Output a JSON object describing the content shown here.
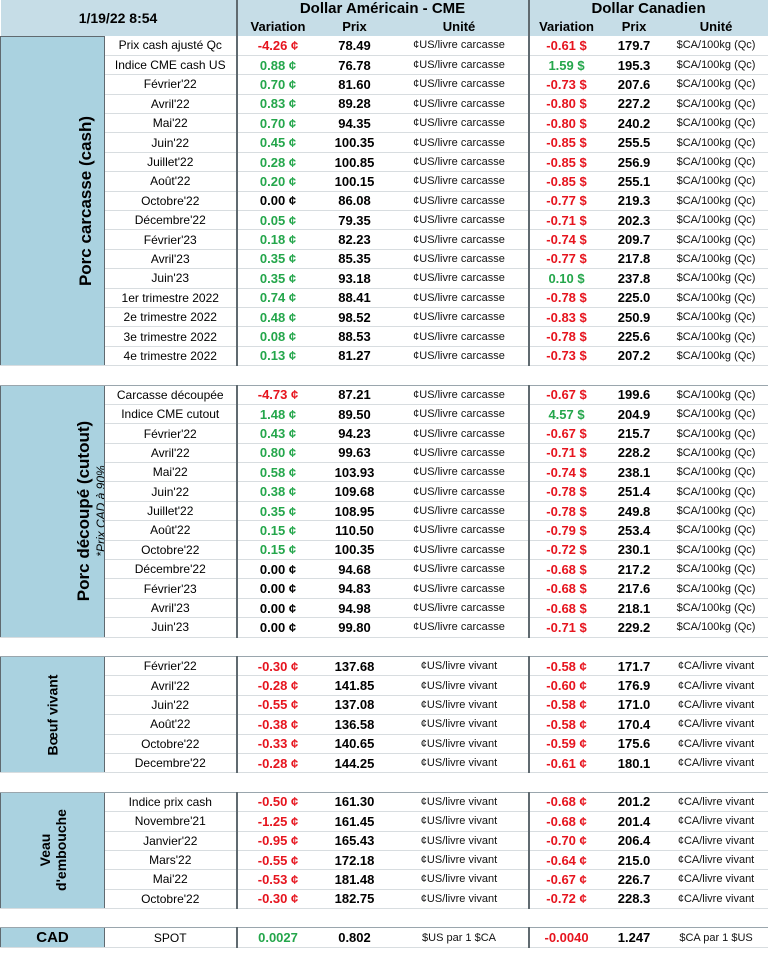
{
  "header": {
    "date": "1/19/22 8:54",
    "usd_title": "Dollar Américain - CME",
    "cad_title": "Dollar Canadien",
    "col_variation": "Variation",
    "col_prix": "Prix",
    "col_unite": "Unité"
  },
  "colors": {
    "negative": "#e6141e",
    "positive": "#24a64b",
    "side_bg": "#aad2e0",
    "header_bg": "#c6dde7"
  },
  "sections": [
    {
      "id": "porc-carcasse",
      "label": "Porc carcasse (cash)",
      "note": "",
      "rows": [
        {
          "label": "Prix cash ajusté Qc",
          "usd_var": "-4.26 ¢",
          "usd_price": "78.49",
          "usd_unit": "¢US/livre carcasse",
          "cad_var": "-0.61 $",
          "cad_price": "179.7",
          "cad_unit": "$CA/100kg (Qc)"
        },
        {
          "label": "Indice CME cash US",
          "usd_var": "0.88 ¢",
          "usd_price": "76.78",
          "usd_unit": "¢US/livre carcasse",
          "cad_var": "1.59 $",
          "cad_price": "195.3",
          "cad_unit": "$CA/100kg (Qc)"
        },
        {
          "label": "Février'22",
          "usd_var": "0.70 ¢",
          "usd_price": "81.60",
          "usd_unit": "¢US/livre carcasse",
          "cad_var": "-0.73 $",
          "cad_price": "207.6",
          "cad_unit": "$CA/100kg (Qc)"
        },
        {
          "label": "Avril'22",
          "usd_var": "0.83 ¢",
          "usd_price": "89.28",
          "usd_unit": "¢US/livre carcasse",
          "cad_var": "-0.80 $",
          "cad_price": "227.2",
          "cad_unit": "$CA/100kg (Qc)"
        },
        {
          "label": "Mai'22",
          "usd_var": "0.70 ¢",
          "usd_price": "94.35",
          "usd_unit": "¢US/livre carcasse",
          "cad_var": "-0.80 $",
          "cad_price": "240.2",
          "cad_unit": "$CA/100kg (Qc)"
        },
        {
          "label": "Juin'22",
          "usd_var": "0.45 ¢",
          "usd_price": "100.35",
          "usd_unit": "¢US/livre carcasse",
          "cad_var": "-0.85 $",
          "cad_price": "255.5",
          "cad_unit": "$CA/100kg (Qc)"
        },
        {
          "label": "Juillet'22",
          "usd_var": "0.28 ¢",
          "usd_price": "100.85",
          "usd_unit": "¢US/livre carcasse",
          "cad_var": "-0.85 $",
          "cad_price": "256.9",
          "cad_unit": "$CA/100kg (Qc)"
        },
        {
          "label": "Août'22",
          "usd_var": "0.20 ¢",
          "usd_price": "100.15",
          "usd_unit": "¢US/livre carcasse",
          "cad_var": "-0.85 $",
          "cad_price": "255.1",
          "cad_unit": "$CA/100kg (Qc)"
        },
        {
          "label": "Octobre'22",
          "usd_var": "0.00 ¢",
          "usd_price": "86.08",
          "usd_unit": "¢US/livre carcasse",
          "cad_var": "-0.77 $",
          "cad_price": "219.3",
          "cad_unit": "$CA/100kg (Qc)"
        },
        {
          "label": "Décembre'22",
          "usd_var": "0.05 ¢",
          "usd_price": "79.35",
          "usd_unit": "¢US/livre carcasse",
          "cad_var": "-0.71 $",
          "cad_price": "202.3",
          "cad_unit": "$CA/100kg (Qc)"
        },
        {
          "label": "Février'23",
          "usd_var": "0.18 ¢",
          "usd_price": "82.23",
          "usd_unit": "¢US/livre carcasse",
          "cad_var": "-0.74 $",
          "cad_price": "209.7",
          "cad_unit": "$CA/100kg (Qc)"
        },
        {
          "label": "Avril'23",
          "usd_var": "0.35 ¢",
          "usd_price": "85.35",
          "usd_unit": "¢US/livre carcasse",
          "cad_var": "-0.77 $",
          "cad_price": "217.8",
          "cad_unit": "$CA/100kg (Qc)"
        },
        {
          "label": "Juin'23",
          "usd_var": "0.35 ¢",
          "usd_price": "93.18",
          "usd_unit": "¢US/livre carcasse",
          "cad_var": "0.10 $",
          "cad_price": "237.8",
          "cad_unit": "$CA/100kg (Qc)"
        },
        {
          "label": "1er trimestre 2022",
          "usd_var": "0.74 ¢",
          "usd_price": "88.41",
          "usd_unit": "¢US/livre carcasse",
          "cad_var": "-0.78 $",
          "cad_price": "225.0",
          "cad_unit": "$CA/100kg (Qc)"
        },
        {
          "label": "2e trimestre 2022",
          "usd_var": "0.48 ¢",
          "usd_price": "98.52",
          "usd_unit": "¢US/livre carcasse",
          "cad_var": "-0.83 $",
          "cad_price": "250.9",
          "cad_unit": "$CA/100kg (Qc)"
        },
        {
          "label": "3e trimestre 2022",
          "usd_var": "0.08 ¢",
          "usd_price": "88.53",
          "usd_unit": "¢US/livre carcasse",
          "cad_var": "-0.78 $",
          "cad_price": "225.6",
          "cad_unit": "$CA/100kg (Qc)"
        },
        {
          "label": "4e trimestre 2022",
          "usd_var": "0.13 ¢",
          "usd_price": "81.27",
          "usd_unit": "¢US/livre carcasse",
          "cad_var": "-0.73 $",
          "cad_price": "207.2",
          "cad_unit": "$CA/100kg (Qc)"
        }
      ]
    },
    {
      "id": "porc-decoupe",
      "label": "Porc découpé (cutout)",
      "note": "*Prix CAD à 90%",
      "rows": [
        {
          "label": "Carcasse découpée",
          "usd_var": "-4.73 ¢",
          "usd_price": "87.21",
          "usd_unit": "¢US/livre carcasse",
          "cad_var": "-0.67 $",
          "cad_price": "199.6",
          "cad_unit": "$CA/100kg (Qc)"
        },
        {
          "label": "Indice CME cutout",
          "usd_var": "1.48 ¢",
          "usd_price": "89.50",
          "usd_unit": "¢US/livre carcasse",
          "cad_var": "4.57 $",
          "cad_price": "204.9",
          "cad_unit": "$CA/100kg (Qc)"
        },
        {
          "label": "Février'22",
          "usd_var": "0.43 ¢",
          "usd_price": "94.23",
          "usd_unit": "¢US/livre carcasse",
          "cad_var": "-0.67 $",
          "cad_price": "215.7",
          "cad_unit": "$CA/100kg (Qc)"
        },
        {
          "label": "Avril'22",
          "usd_var": "0.80 ¢",
          "usd_price": "99.63",
          "usd_unit": "¢US/livre carcasse",
          "cad_var": "-0.71 $",
          "cad_price": "228.2",
          "cad_unit": "$CA/100kg (Qc)"
        },
        {
          "label": "Mai'22",
          "usd_var": "0.58 ¢",
          "usd_price": "103.93",
          "usd_unit": "¢US/livre carcasse",
          "cad_var": "-0.74 $",
          "cad_price": "238.1",
          "cad_unit": "$CA/100kg (Qc)"
        },
        {
          "label": "Juin'22",
          "usd_var": "0.38 ¢",
          "usd_price": "109.68",
          "usd_unit": "¢US/livre carcasse",
          "cad_var": "-0.78 $",
          "cad_price": "251.4",
          "cad_unit": "$CA/100kg (Qc)"
        },
        {
          "label": "Juillet'22",
          "usd_var": "0.35 ¢",
          "usd_price": "108.95",
          "usd_unit": "¢US/livre carcasse",
          "cad_var": "-0.78 $",
          "cad_price": "249.8",
          "cad_unit": "$CA/100kg (Qc)"
        },
        {
          "label": "Août'22",
          "usd_var": "0.15 ¢",
          "usd_price": "110.50",
          "usd_unit": "¢US/livre carcasse",
          "cad_var": "-0.79 $",
          "cad_price": "253.4",
          "cad_unit": "$CA/100kg (Qc)"
        },
        {
          "label": "Octobre'22",
          "usd_var": "0.15 ¢",
          "usd_price": "100.35",
          "usd_unit": "¢US/livre carcasse",
          "cad_var": "-0.72 $",
          "cad_price": "230.1",
          "cad_unit": "$CA/100kg (Qc)"
        },
        {
          "label": "Décembre'22",
          "usd_var": "0.00 ¢",
          "usd_price": "94.68",
          "usd_unit": "¢US/livre carcasse",
          "cad_var": "-0.68 $",
          "cad_price": "217.2",
          "cad_unit": "$CA/100kg (Qc)"
        },
        {
          "label": "Février'23",
          "usd_var": "0.00 ¢",
          "usd_price": "94.83",
          "usd_unit": "¢US/livre carcasse",
          "cad_var": "-0.68 $",
          "cad_price": "217.6",
          "cad_unit": "$CA/100kg (Qc)"
        },
        {
          "label": "Avril'23",
          "usd_var": "0.00 ¢",
          "usd_price": "94.98",
          "usd_unit": "¢US/livre carcasse",
          "cad_var": "-0.68 $",
          "cad_price": "218.1",
          "cad_unit": "$CA/100kg (Qc)"
        },
        {
          "label": "Juin'23",
          "usd_var": "0.00 ¢",
          "usd_price": "99.80",
          "usd_unit": "¢US/livre carcasse",
          "cad_var": "-0.71 $",
          "cad_price": "229.2",
          "cad_unit": "$CA/100kg (Qc)"
        }
      ]
    },
    {
      "id": "boeuf-vivant",
      "label": "Bœuf vivant",
      "note": "",
      "rows": [
        {
          "label": "Février'22",
          "usd_var": "-0.30 ¢",
          "usd_price": "137.68",
          "usd_unit": "¢US/livre vivant",
          "cad_var": "-0.58 ¢",
          "cad_price": "171.7",
          "cad_unit": "¢CA/livre vivant"
        },
        {
          "label": "Avril'22",
          "usd_var": "-0.28 ¢",
          "usd_price": "141.85",
          "usd_unit": "¢US/livre vivant",
          "cad_var": "-0.60 ¢",
          "cad_price": "176.9",
          "cad_unit": "¢CA/livre vivant"
        },
        {
          "label": "Juin'22",
          "usd_var": "-0.55 ¢",
          "usd_price": "137.08",
          "usd_unit": "¢US/livre vivant",
          "cad_var": "-0.58 ¢",
          "cad_price": "171.0",
          "cad_unit": "¢CA/livre vivant"
        },
        {
          "label": "Août'22",
          "usd_var": "-0.38 ¢",
          "usd_price": "136.58",
          "usd_unit": "¢US/livre vivant",
          "cad_var": "-0.58 ¢",
          "cad_price": "170.4",
          "cad_unit": "¢CA/livre vivant"
        },
        {
          "label": "Octobre'22",
          "usd_var": "-0.33 ¢",
          "usd_price": "140.65",
          "usd_unit": "¢US/livre vivant",
          "cad_var": "-0.59 ¢",
          "cad_price": "175.6",
          "cad_unit": "¢CA/livre vivant"
        },
        {
          "label": "Decembre'22",
          "usd_var": "-0.28 ¢",
          "usd_price": "144.25",
          "usd_unit": "¢US/livre vivant",
          "cad_var": "-0.61 ¢",
          "cad_price": "180.1",
          "cad_unit": "¢CA/livre vivant"
        }
      ]
    },
    {
      "id": "veau-embouche",
      "label": "Veau",
      "label2": "d'embouche",
      "note": "",
      "rows": [
        {
          "label": "Indice prix cash",
          "usd_var": "-0.50 ¢",
          "usd_price": "161.30",
          "usd_unit": "¢US/livre vivant",
          "cad_var": "-0.68 ¢",
          "cad_price": "201.2",
          "cad_unit": "¢CA/livre vivant"
        },
        {
          "label": "Novembre'21",
          "usd_var": "-1.25 ¢",
          "usd_price": "161.45",
          "usd_unit": "¢US/livre vivant",
          "cad_var": "-0.68 ¢",
          "cad_price": "201.4",
          "cad_unit": "¢CA/livre vivant"
        },
        {
          "label": "Janvier'22",
          "usd_var": "-0.95 ¢",
          "usd_price": "165.43",
          "usd_unit": "¢US/livre vivant",
          "cad_var": "-0.70 ¢",
          "cad_price": "206.4",
          "cad_unit": "¢CA/livre vivant"
        },
        {
          "label": "Mars'22",
          "usd_var": "-0.55 ¢",
          "usd_price": "172.18",
          "usd_unit": "¢US/livre vivant",
          "cad_var": "-0.64 ¢",
          "cad_price": "215.0",
          "cad_unit": "¢CA/livre vivant"
        },
        {
          "label": "Mai'22",
          "usd_var": "-0.53 ¢",
          "usd_price": "181.48",
          "usd_unit": "¢US/livre vivant",
          "cad_var": "-0.67 ¢",
          "cad_price": "226.7",
          "cad_unit": "¢CA/livre vivant"
        },
        {
          "label": "Octobre'22",
          "usd_var": "-0.30 ¢",
          "usd_price": "182.75",
          "usd_unit": "¢US/livre vivant",
          "cad_var": "-0.72 ¢",
          "cad_price": "228.3",
          "cad_unit": "¢CA/livre vivant"
        }
      ]
    }
  ],
  "cad": {
    "label": "CAD",
    "row_label": "SPOT",
    "usd_var": "0.0027",
    "usd_price": "0.802",
    "usd_unit": "$US par 1 $CA",
    "cad_var": "-0.0040",
    "cad_price": "1.247",
    "cad_unit": "$CA par 1 $US"
  }
}
